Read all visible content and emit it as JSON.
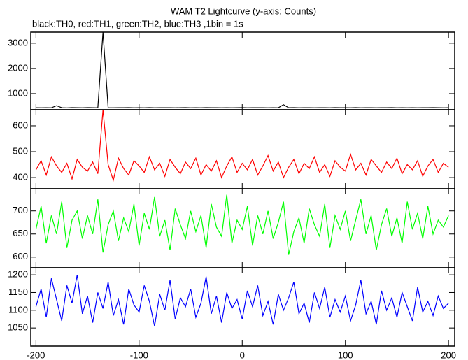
{
  "chart_data": [
    {
      "type": "line",
      "title": "WAM T2 Lightcurve (y-axis: Counts)",
      "subtitle": "black:TH0, red:TH1, green:TH2, blue:TH3 ,1bin = 1s",
      "x": [
        -200,
        -195,
        -190,
        -185,
        -180,
        -175,
        -170,
        -165,
        -160,
        -155,
        -150,
        -145,
        -140,
        -135,
        -130,
        -125,
        -120,
        -115,
        -110,
        -105,
        -100,
        -95,
        -90,
        -85,
        -80,
        -75,
        -70,
        -65,
        -60,
        -55,
        -50,
        -45,
        -40,
        -35,
        -30,
        -25,
        -20,
        -15,
        -10,
        -5,
        0,
        5,
        10,
        15,
        20,
        25,
        30,
        35,
        40,
        45,
        50,
        55,
        60,
        65,
        70,
        75,
        80,
        85,
        90,
        95,
        100,
        105,
        110,
        115,
        120,
        125,
        130,
        135,
        140,
        145,
        150,
        155,
        160,
        165,
        170,
        175,
        180,
        185,
        190,
        195,
        200
      ],
      "xlim": [
        -205,
        206
      ],
      "ylim": [
        360,
        3440
      ],
      "yticks": [
        1000,
        2000,
        3000
      ],
      "series": [
        {
          "color": "#000000",
          "values": [
            440,
            436,
            442,
            438,
            520,
            441,
            435,
            443,
            439,
            437,
            444,
            440,
            438,
            3440,
            442,
            436,
            441,
            439,
            443,
            437,
            440,
            438,
            444,
            436,
            441,
            439,
            442,
            437,
            440,
            443,
            438,
            441,
            436,
            444,
            439,
            440,
            437,
            442,
            438,
            441,
            443,
            436,
            440,
            439,
            442,
            437,
            441,
            438,
            560,
            440,
            443,
            436,
            441,
            439,
            438,
            442,
            440,
            437,
            444,
            439,
            441,
            436,
            443,
            438,
            440,
            442,
            437,
            441,
            439,
            444,
            436,
            440,
            438,
            442,
            437,
            441,
            439,
            443,
            440,
            436,
            441
          ]
        }
      ]
    },
    {
      "type": "line",
      "x": [
        -200,
        -195,
        -190,
        -185,
        -180,
        -175,
        -170,
        -165,
        -160,
        -155,
        -150,
        -145,
        -140,
        -135,
        -130,
        -125,
        -120,
        -115,
        -110,
        -105,
        -100,
        -95,
        -90,
        -85,
        -80,
        -75,
        -70,
        -65,
        -60,
        -55,
        -50,
        -45,
        -40,
        -35,
        -30,
        -25,
        -20,
        -15,
        -10,
        -5,
        0,
        5,
        10,
        15,
        20,
        25,
        30,
        35,
        40,
        45,
        50,
        55,
        60,
        65,
        70,
        75,
        80,
        85,
        90,
        95,
        100,
        105,
        110,
        115,
        120,
        125,
        130,
        135,
        140,
        145,
        150,
        155,
        160,
        165,
        170,
        175,
        180,
        185,
        190,
        195,
        200
      ],
      "xlim": [
        -205,
        206
      ],
      "ylim": [
        357,
        662
      ],
      "yticks": [
        400,
        500,
        600
      ],
      "series": [
        {
          "color": "#ff0000",
          "values": [
            430,
            465,
            410,
            480,
            445,
            420,
            455,
            395,
            470,
            440,
            425,
            460,
            415,
            662,
            450,
            390,
            475,
            435,
            410,
            465,
            445,
            420,
            480,
            430,
            455,
            405,
            470,
            440,
            415,
            460,
            435,
            475,
            410,
            450,
            425,
            465,
            400,
            445,
            480,
            420,
            455,
            430,
            470,
            410,
            445,
            485,
            425,
            460,
            400,
            440,
            470,
            415,
            455,
            435,
            480,
            420,
            450,
            405,
            465,
            440,
            425,
            490,
            430,
            455,
            410,
            470,
            445,
            420,
            460,
            435,
            475,
            415,
            450,
            430,
            465,
            405,
            445,
            470,
            420,
            455,
            440
          ]
        }
      ]
    },
    {
      "type": "line",
      "x": [
        -200,
        -195,
        -190,
        -185,
        -180,
        -175,
        -170,
        -165,
        -160,
        -155,
        -150,
        -145,
        -140,
        -135,
        -130,
        -125,
        -120,
        -115,
        -110,
        -105,
        -100,
        -95,
        -90,
        -85,
        -80,
        -75,
        -70,
        -65,
        -60,
        -55,
        -50,
        -45,
        -40,
        -35,
        -30,
        -25,
        -20,
        -15,
        -10,
        -5,
        0,
        5,
        10,
        15,
        20,
        25,
        30,
        35,
        40,
        45,
        50,
        55,
        60,
        65,
        70,
        75,
        80,
        85,
        90,
        95,
        100,
        105,
        110,
        115,
        120,
        125,
        130,
        135,
        140,
        145,
        150,
        155,
        160,
        165,
        170,
        175,
        180,
        185,
        190,
        195,
        200
      ],
      "xlim": [
        -205,
        206
      ],
      "ylim": [
        577,
        748
      ],
      "yticks": [
        600,
        650,
        700
      ],
      "series": [
        {
          "color": "#00ff00",
          "values": [
            660,
            710,
            630,
            690,
            650,
            720,
            620,
            680,
            700,
            640,
            690,
            650,
            725,
            610,
            670,
            700,
            635,
            685,
            655,
            715,
            625,
            695,
            660,
            730,
            645,
            680,
            615,
            705,
            670,
            640,
            700,
            655,
            690,
            620,
            715,
            665,
            645,
            735,
            630,
            680,
            660,
            710,
            625,
            690,
            650,
            700,
            640,
            675,
            720,
            605,
            655,
            685,
            630,
            705,
            670,
            645,
            715,
            620,
            690,
            660,
            700,
            635,
            680,
            725,
            650,
            690,
            615,
            670,
            705,
            645,
            685,
            630,
            720,
            660,
            695,
            640,
            710,
            650,
            680,
            665,
            690
          ]
        }
      ]
    },
    {
      "type": "line",
      "x": [
        -200,
        -195,
        -190,
        -185,
        -180,
        -175,
        -170,
        -165,
        -160,
        -155,
        -150,
        -145,
        -140,
        -135,
        -130,
        -125,
        -120,
        -115,
        -110,
        -105,
        -100,
        -95,
        -90,
        -85,
        -80,
        -75,
        -70,
        -65,
        -60,
        -55,
        -50,
        -45,
        -40,
        -35,
        -30,
        -25,
        -20,
        -15,
        -10,
        -5,
        0,
        5,
        10,
        15,
        20,
        25,
        30,
        35,
        40,
        45,
        50,
        55,
        60,
        65,
        70,
        75,
        80,
        85,
        90,
        95,
        100,
        105,
        110,
        115,
        120,
        125,
        130,
        135,
        140,
        145,
        150,
        155,
        160,
        165,
        170,
        175,
        180,
        185,
        190,
        195,
        200
      ],
      "xlim": [
        -205,
        206
      ],
      "ylim": [
        999,
        1220
      ],
      "yticks": [
        1050,
        1100,
        1150,
        1200
      ],
      "xticks": [
        -200,
        -100,
        0,
        100,
        200
      ],
      "series": [
        {
          "color": "#0000ff",
          "values": [
            1110,
            1160,
            1080,
            1190,
            1130,
            1070,
            1170,
            1120,
            1200,
            1090,
            1140,
            1065,
            1150,
            1105,
            1180,
            1085,
            1130,
            1060,
            1160,
            1115,
            1095,
            1170,
            1125,
            1055,
            1145,
            1100,
            1185,
            1075,
            1135,
            1110,
            1160,
            1080,
            1120,
            1195,
            1090,
            1140,
            1065,
            1150,
            1105,
            1130,
            1075,
            1155,
            1110,
            1170,
            1085,
            1125,
            1060,
            1145,
            1100,
            1135,
            1180,
            1090,
            1120,
            1065,
            1150,
            1105,
            1165,
            1080,
            1130,
            1095,
            1140,
            1070,
            1115,
            1185,
            1090,
            1125,
            1060,
            1155,
            1100,
            1135,
            1080,
            1150,
            1110,
            1070,
            1165,
            1095,
            1125,
            1085,
            1140,
            1105,
            1120
          ]
        }
      ]
    }
  ]
}
